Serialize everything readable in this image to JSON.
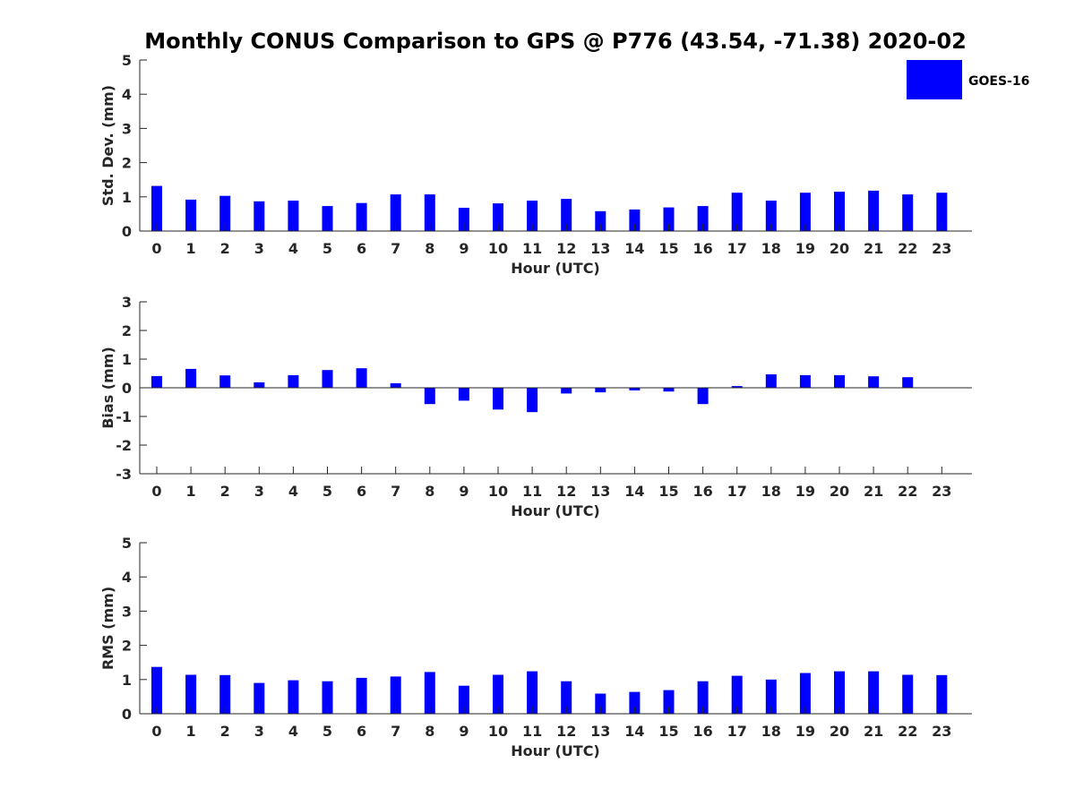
{
  "title": "Monthly CONUS Comparison to GPS @ P776 (43.54, -71.38) 2020-02",
  "legend": {
    "label": "GOES-16",
    "color": "#0000ff"
  },
  "chart_data": [
    {
      "type": "bar",
      "name": "std-dev",
      "categories": [
        "0",
        "1",
        "2",
        "3",
        "4",
        "5",
        "6",
        "7",
        "8",
        "9",
        "10",
        "11",
        "12",
        "13",
        "14",
        "15",
        "16",
        "17",
        "18",
        "19",
        "20",
        "21",
        "22",
        "23"
      ],
      "values": [
        1.32,
        0.92,
        1.03,
        0.87,
        0.89,
        0.73,
        0.82,
        1.07,
        1.07,
        0.68,
        0.81,
        0.89,
        0.94,
        0.58,
        0.63,
        0.69,
        0.73,
        1.12,
        0.89,
        1.12,
        1.15,
        1.18,
        1.07,
        1.12
      ],
      "xlabel": "Hour (UTC)",
      "ylabel": "Std. Dev. (mm)",
      "ylim": [
        0,
        5
      ],
      "yticks": [
        0,
        1,
        2,
        3,
        4,
        5
      ],
      "grid": false
    },
    {
      "type": "bar",
      "name": "bias",
      "categories": [
        "0",
        "1",
        "2",
        "3",
        "4",
        "5",
        "6",
        "7",
        "8",
        "9",
        "10",
        "11",
        "12",
        "13",
        "14",
        "15",
        "16",
        "17",
        "18",
        "19",
        "20",
        "21",
        "22",
        "23"
      ],
      "values": [
        0.41,
        0.66,
        0.43,
        0.19,
        0.44,
        0.62,
        0.68,
        0.16,
        -0.57,
        -0.45,
        -0.76,
        -0.85,
        -0.2,
        -0.16,
        -0.09,
        -0.13,
        -0.57,
        0.06,
        0.47,
        0.44,
        0.44,
        0.4,
        0.37,
        0.0
      ],
      "xlabel": "Hour (UTC)",
      "ylabel": "Bias (mm)",
      "ylim": [
        -3,
        3
      ],
      "yticks": [
        -3,
        -2,
        -1,
        0,
        1,
        2,
        3
      ],
      "grid": false
    },
    {
      "type": "bar",
      "name": "rms",
      "categories": [
        "0",
        "1",
        "2",
        "3",
        "4",
        "5",
        "6",
        "7",
        "8",
        "9",
        "10",
        "11",
        "12",
        "13",
        "14",
        "15",
        "16",
        "17",
        "18",
        "19",
        "20",
        "21",
        "22",
        "23"
      ],
      "values": [
        1.37,
        1.14,
        1.13,
        0.9,
        0.98,
        0.95,
        1.05,
        1.09,
        1.22,
        0.82,
        1.14,
        1.24,
        0.95,
        0.59,
        0.64,
        0.69,
        0.95,
        1.11,
        1.0,
        1.19,
        1.24,
        1.24,
        1.14,
        1.13
      ],
      "xlabel": "Hour (UTC)",
      "ylabel": "RMS (mm)",
      "ylim": [
        0,
        5
      ],
      "yticks": [
        0,
        1,
        2,
        3,
        4,
        5
      ],
      "grid": false
    }
  ]
}
